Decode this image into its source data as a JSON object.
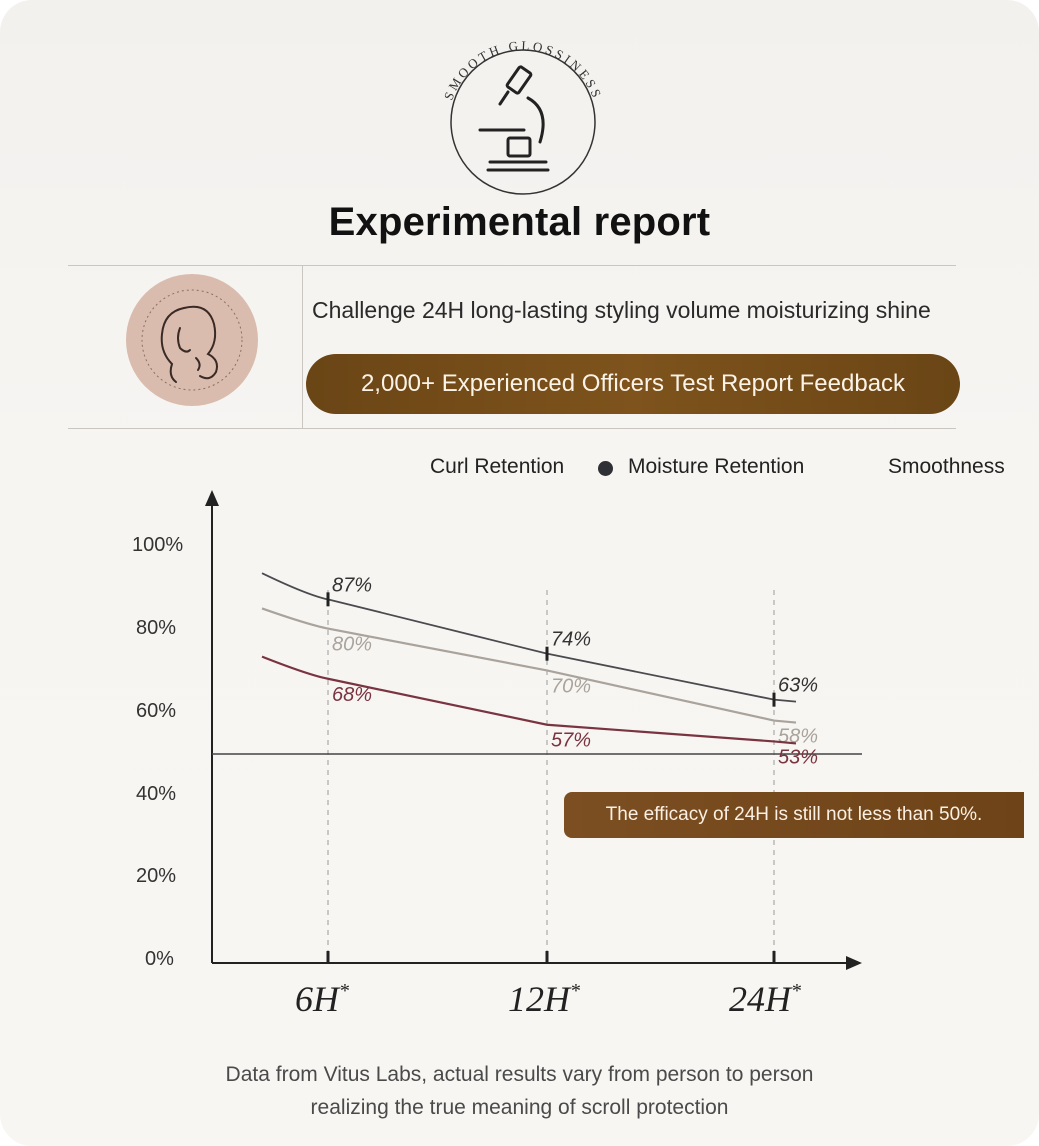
{
  "header": {
    "seal_text": "SMOOTH GLOSSINESS",
    "title": "Experimental report"
  },
  "intro": {
    "tagline": "Challenge 24H long-lasting styling volume moisturizing shine",
    "pill_label": "2,000+ Experienced Officers Test Report Feedback",
    "brand_color": "#734b1a"
  },
  "chart_data": {
    "type": "line",
    "categories": [
      "6H",
      "12H",
      "24H"
    ],
    "category_suffix": "*",
    "y_ticks": [
      "100%",
      "80%",
      "60%",
      "40%",
      "20%",
      "0%"
    ],
    "ylim": [
      0,
      100
    ],
    "legend": [
      "Curl Retention",
      "Moisture Retention",
      "Smoothness"
    ],
    "legend_position": "top-right",
    "series": [
      {
        "name": "Curl Retention",
        "values": [
          87,
          74,
          63
        ],
        "labels": [
          "87%",
          "74%",
          "63%"
        ],
        "color": "#4a4a4f"
      },
      {
        "name": "Moisture Retention",
        "values": [
          80,
          70,
          58
        ],
        "labels": [
          "80%",
          "70%",
          "58%"
        ],
        "color": "#a9a39c"
      },
      {
        "name": "Smoothness",
        "values": [
          68,
          57,
          53
        ],
        "labels": [
          "68%",
          "57%",
          "53%"
        ],
        "color": "#7a3440"
      }
    ],
    "reference_line": 50,
    "annotation": "The efficacy of 24H is still not less than 50%.",
    "grid": false
  },
  "footer": {
    "line1": "Data from Vitus Labs, actual results vary from person to person",
    "line2": "realizing the true meaning of scroll protection"
  }
}
